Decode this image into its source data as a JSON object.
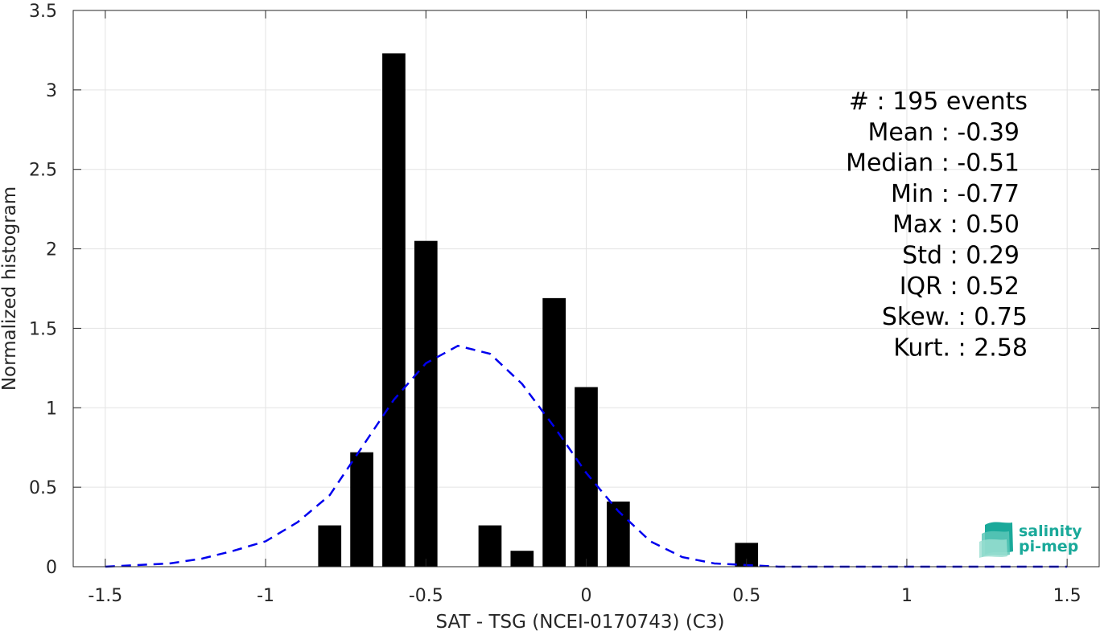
{
  "chart_data": {
    "type": "bar",
    "xlabel": "SAT - TSG (NCEI-0170743) (C3)",
    "ylabel": "Normalized histogram",
    "xlim": [
      -1.6,
      1.6
    ],
    "ylim": [
      0,
      3.5
    ],
    "xticks": [
      -1.5,
      -1,
      -0.5,
      0,
      0.5,
      1,
      1.5
    ],
    "xtick_labels": [
      "-1.5",
      "-1",
      "-0.5",
      "0",
      "0.5",
      "1",
      "1.5"
    ],
    "yticks": [
      0,
      0.5,
      1,
      1.5,
      2,
      2.5,
      3,
      3.5
    ],
    "ytick_labels": [
      "0",
      "0.5",
      "1",
      "1.5",
      "2",
      "2.5",
      "3",
      "3.5"
    ],
    "grid": true,
    "bin_width": 0.1,
    "bars": {
      "x": [
        -0.8,
        -0.7,
        -0.6,
        -0.5,
        -0.3,
        -0.2,
        -0.1,
        0.0,
        0.1,
        0.5
      ],
      "values": [
        0.26,
        0.72,
        3.23,
        2.05,
        0.26,
        0.1,
        1.69,
        1.13,
        0.41,
        0.15
      ],
      "color": "#000000"
    },
    "fit_curve": {
      "style": "dashed",
      "color": "#0000ee",
      "x": [
        -1.5,
        -1.4,
        -1.3,
        -1.2,
        -1.1,
        -1.0,
        -0.9,
        -0.8,
        -0.7,
        -0.6,
        -0.5,
        -0.4,
        -0.3,
        -0.2,
        -0.1,
        0.0,
        0.1,
        0.2,
        0.3,
        0.4,
        0.5,
        0.6,
        0.7,
        0.8,
        0.9,
        1.0,
        1.1,
        1.2,
        1.3,
        1.4,
        1.5
      ],
      "y": [
        0.0,
        0.01,
        0.02,
        0.05,
        0.1,
        0.16,
        0.28,
        0.45,
        0.75,
        1.05,
        1.28,
        1.39,
        1.34,
        1.15,
        0.88,
        0.59,
        0.35,
        0.16,
        0.06,
        0.02,
        0.01,
        0.0,
        0.0,
        0.0,
        0.0,
        0.0,
        0.0,
        0.0,
        0.0,
        0.0,
        0.0
      ]
    },
    "stats": [
      "#  : 195 events",
      "Mean : -0.39",
      "Median : -0.51",
      "Min : -0.77",
      "Max : 0.50",
      "Std : 0.29",
      "IQR : 0.52",
      "Skew. : 0.75",
      "Kurt. : 2.58"
    ]
  },
  "logo": {
    "line1": "salinity",
    "line2": "pi-mep",
    "color": "#1aa99a"
  }
}
